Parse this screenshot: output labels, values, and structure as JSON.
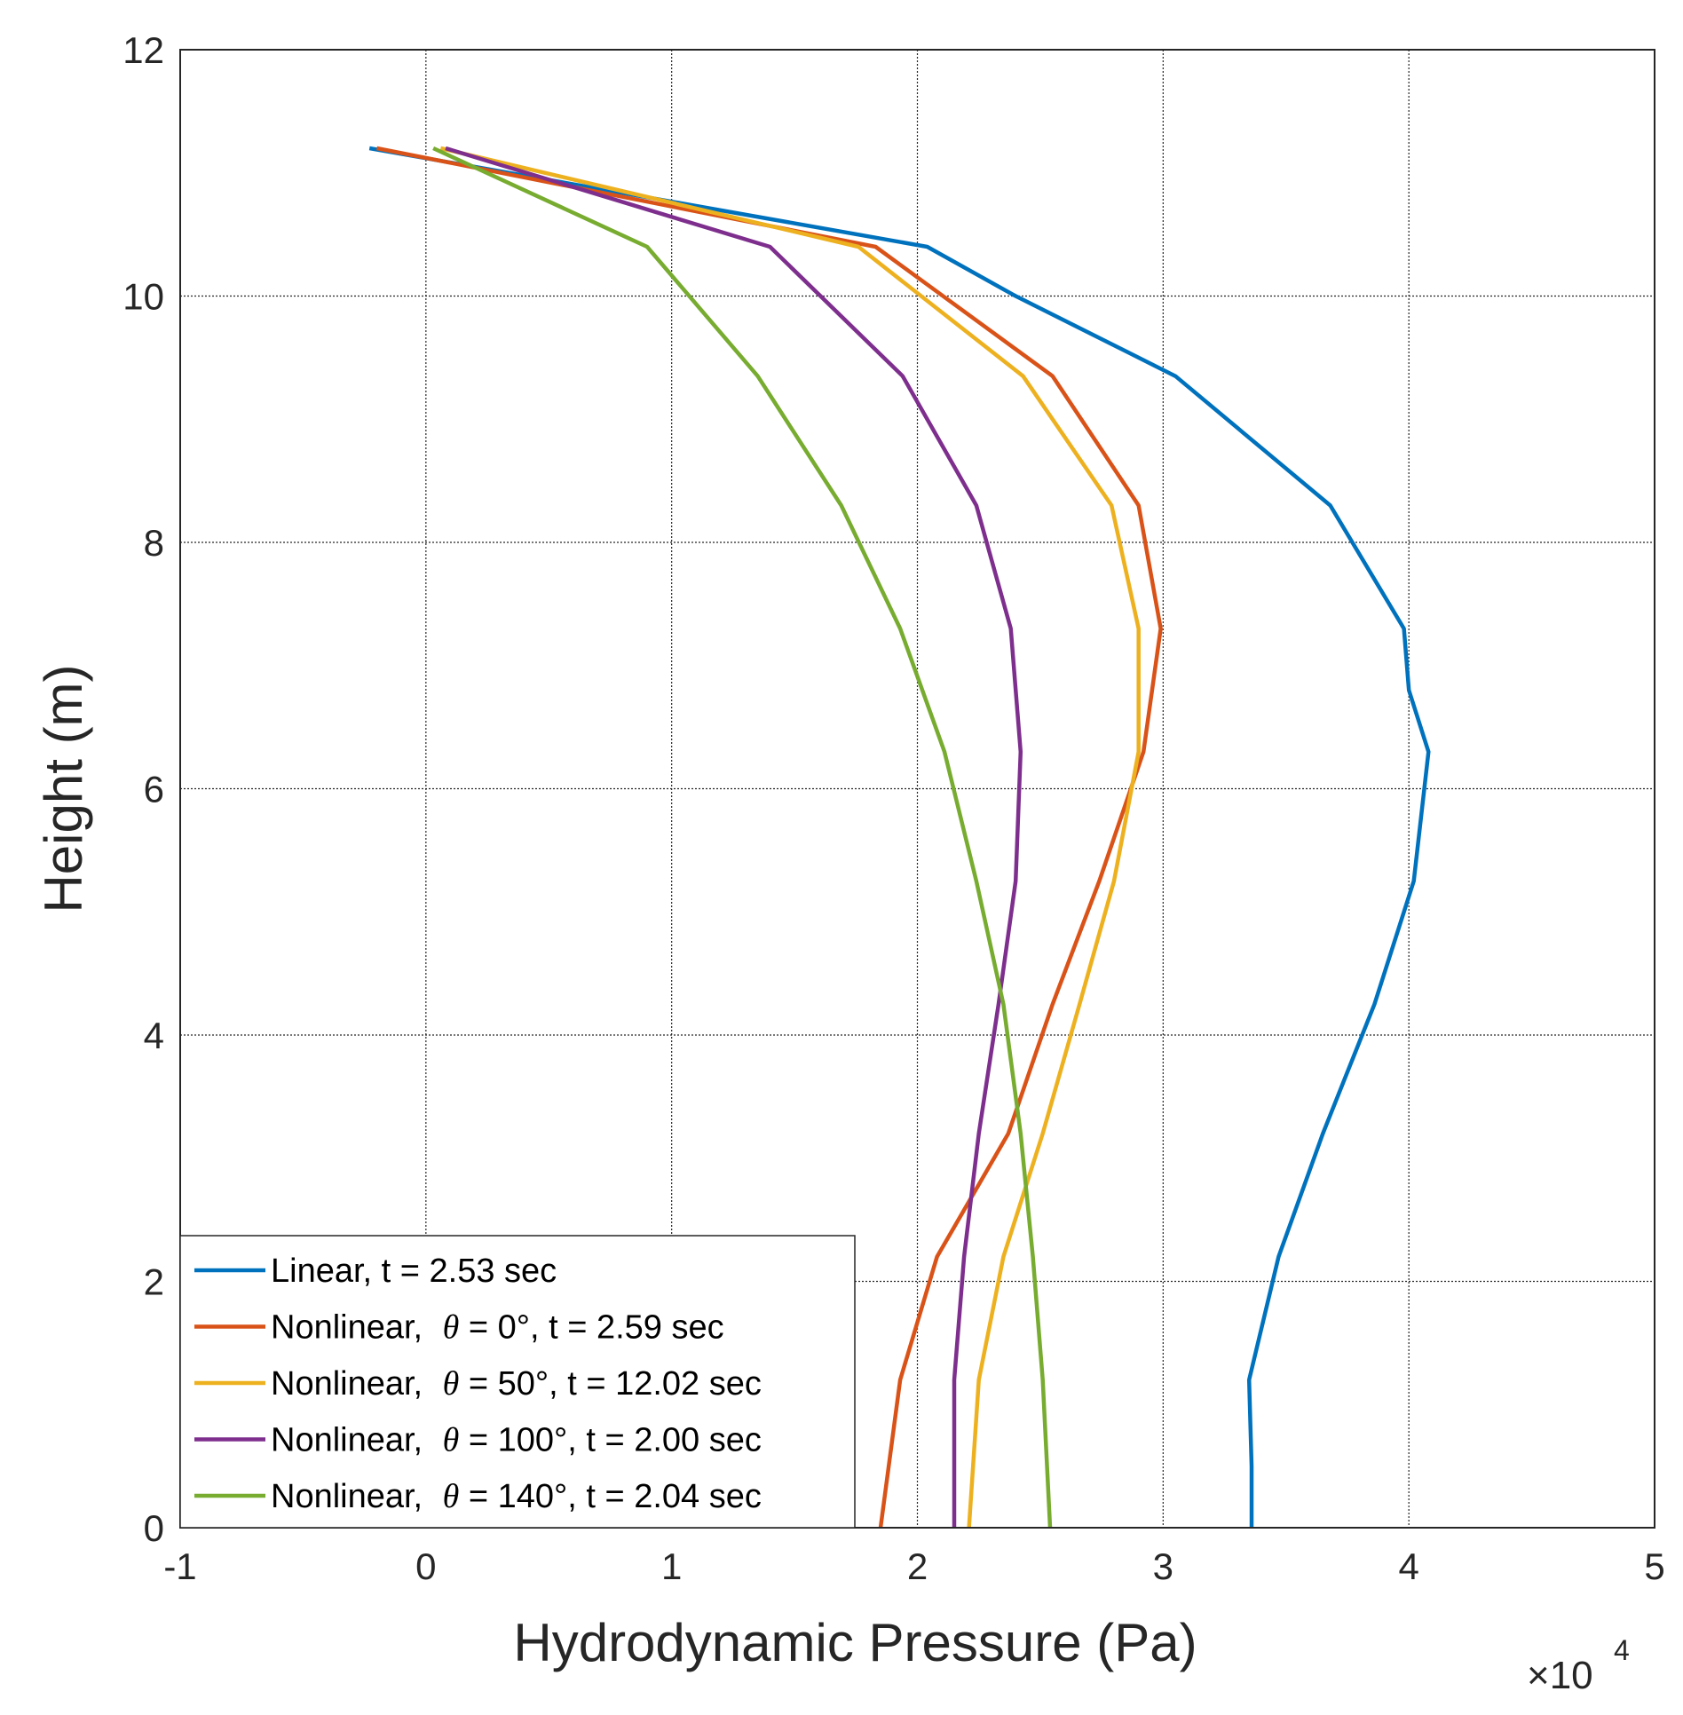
{
  "chart_data": {
    "type": "line",
    "title": "",
    "xlabel": "Hydrodynamic Pressure (Pa)",
    "ylabel": "Height (m)",
    "x_exponent_label": "×10",
    "x_exponent_power": "4",
    "x_scale": 10000,
    "xlim": [
      -1,
      5
    ],
    "ylim": [
      0,
      12
    ],
    "xticks": [
      -1,
      0,
      1,
      2,
      3,
      4,
      5
    ],
    "xtick_labels": [
      "-1",
      "0",
      "1",
      "2",
      "3",
      "4",
      "5"
    ],
    "yticks": [
      0,
      2,
      4,
      6,
      8,
      10,
      12
    ],
    "ytick_labels": [
      "0",
      "2",
      "4",
      "6",
      "8",
      "10",
      "12"
    ],
    "grid": true,
    "legend_position": "bottom-left",
    "series": [
      {
        "name": "Linear, t = 2.53 sec",
        "legend_prefix": "Linear, t = 2.53 sec",
        "legend_theta": "",
        "legend_suffix": "",
        "color": "#0072BD",
        "x": [
          3.36,
          3.36,
          3.35,
          3.47,
          3.65,
          3.86,
          4.02,
          4.08,
          4.0,
          3.98,
          3.68,
          3.05,
          2.4,
          2.04,
          -0.23
        ],
        "y": [
          0,
          0.5,
          1.2,
          2.2,
          3.2,
          4.25,
          5.25,
          6.3,
          6.8,
          7.3,
          8.3,
          9.35,
          10.0,
          10.4,
          11.2
        ]
      },
      {
        "name": "Nonlinear, θ = 0°, t = 2.59 sec",
        "legend_prefix": "Nonlinear, ",
        "legend_theta": "θ",
        "legend_suffix": " = 0°, t = 2.59 sec",
        "color": "#D95319",
        "x": [
          1.85,
          1.93,
          2.08,
          2.37,
          2.55,
          2.74,
          2.92,
          2.99,
          2.9,
          2.55,
          1.83,
          -0.2
        ],
        "y": [
          0,
          1.2,
          2.2,
          3.2,
          4.25,
          5.25,
          6.3,
          7.3,
          8.3,
          9.35,
          10.4,
          11.2
        ]
      },
      {
        "name": "Nonlinear, θ = 50°, t = 12.02 sec",
        "legend_prefix": "Nonlinear, ",
        "legend_theta": "θ",
        "legend_suffix": " = 50°,  t = 12.02 sec",
        "color": "#EDB120",
        "x": [
          2.21,
          2.25,
          2.35,
          2.51,
          2.66,
          2.8,
          2.9,
          2.9,
          2.79,
          2.43,
          1.76,
          0.06
        ],
        "y": [
          0,
          1.2,
          2.2,
          3.2,
          4.25,
          5.25,
          6.3,
          7.3,
          8.3,
          9.35,
          10.4,
          11.2
        ]
      },
      {
        "name": "Nonlinear, θ = 100°, t = 2.00 sec",
        "legend_prefix": "Nonlinear, ",
        "legend_theta": "θ",
        "legend_suffix": " = 100°, t = 2.00 sec",
        "color": "#7E2F8E",
        "x": [
          2.15,
          2.15,
          2.19,
          2.25,
          2.33,
          2.4,
          2.42,
          2.38,
          2.24,
          1.94,
          1.4,
          0.08
        ],
        "y": [
          0,
          1.2,
          2.2,
          3.2,
          4.25,
          5.25,
          6.3,
          7.3,
          8.3,
          9.35,
          10.4,
          11.2
        ]
      },
      {
        "name": "Nonlinear, θ = 140°, t = 2.04 sec",
        "legend_prefix": "Nonlinear, ",
        "legend_theta": "θ",
        "legend_suffix": " = 140°, t = 2.04 sec",
        "color": "#77AC30",
        "x": [
          2.54,
          2.51,
          2.47,
          2.42,
          2.35,
          2.24,
          2.11,
          1.93,
          1.69,
          1.35,
          0.9,
          0.03
        ],
        "y": [
          0,
          1.2,
          2.2,
          3.2,
          4.25,
          5.25,
          6.3,
          7.3,
          8.3,
          9.35,
          10.4,
          11.2
        ]
      }
    ]
  }
}
